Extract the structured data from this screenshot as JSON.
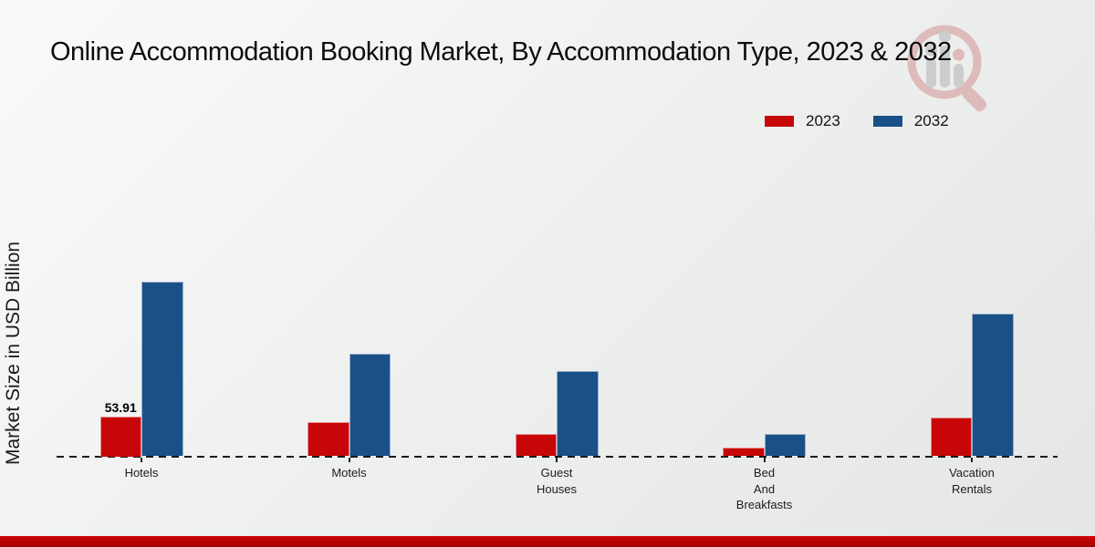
{
  "header": {
    "title": "Online Accommodation Booking Market, By Accommodation Type, 2023 & 2032"
  },
  "y_axis": {
    "label": "Market Size in USD Billion"
  },
  "legend": {
    "items": [
      {
        "label": "2023",
        "color": "#c70707"
      },
      {
        "label": "2032",
        "color": "#1a5088"
      }
    ]
  },
  "icons": {
    "watermark": "magnifier-people-bars-logo"
  },
  "chart_data": {
    "type": "bar",
    "title": "Online Accommodation Booking Market, By Accommodation Type, 2023 & 2032",
    "xlabel": "",
    "ylabel": "Market Size in USD Billion",
    "categories": [
      "Hotels",
      "Motels",
      "Guest Houses",
      "Bed And Breakfasts",
      "Vacation Rentals"
    ],
    "category_label_lines": [
      [
        "Hotels"
      ],
      [
        "Motels"
      ],
      [
        "Guest",
        "Houses"
      ],
      [
        "Bed",
        "And",
        "Breakfasts"
      ],
      [
        "Vacation",
        "Rentals"
      ]
    ],
    "series": [
      {
        "name": "2023",
        "color": "#c70707",
        "values": [
          53.91,
          45.9,
          30.0,
          11.6,
          52.1
        ]
      },
      {
        "name": "2032",
        "color": "#1a5088",
        "values": [
          234.1,
          138.4,
          114.6,
          30.0,
          191.7
        ]
      }
    ],
    "annotations": [
      {
        "series": "2023",
        "category": "Hotels",
        "text": "53.91"
      }
    ],
    "ylim": [
      0,
      260
    ],
    "grid": false,
    "legend_position": "top-right",
    "baseline_style": "dashed",
    "colors": {
      "series_2023": "#c70707",
      "series_2032": "#1a5088",
      "footer_band": "#b50303"
    }
  },
  "footer": {
    "band_color": "#b50303"
  }
}
